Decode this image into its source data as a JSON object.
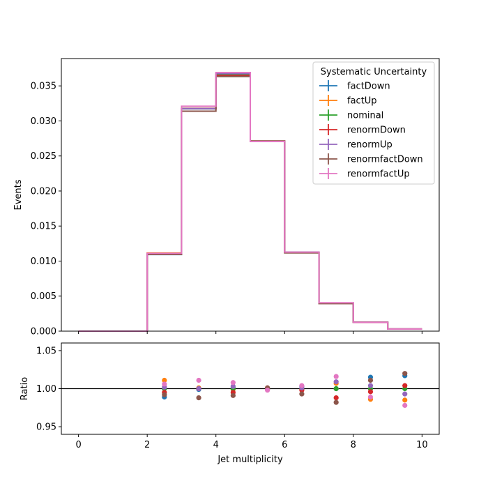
{
  "chart_data": [
    {
      "type": "line",
      "style": "step-histogram",
      "xlabel": "",
      "ylabel": "Events",
      "xlim": [
        -0.5,
        10.5
      ],
      "ylim": [
        0,
        0.0389
      ],
      "bin_edges": [
        0,
        1,
        2,
        3,
        4,
        5,
        6,
        7,
        8,
        9,
        10
      ],
      "yticks": [
        "0.000",
        "0.005",
        "0.010",
        "0.015",
        "0.020",
        "0.025",
        "0.030",
        "0.035"
      ],
      "xticks": [
        0,
        2,
        4,
        6,
        8,
        10
      ],
      "legend_title": "Systematic Uncertainty",
      "legend_position": "upper-right",
      "series": [
        {
          "name": "factDown",
          "color": "#1f77b4",
          "values": [
            0,
            0,
            0.01093,
            0.03172,
            0.0367,
            0.0271,
            0.01128,
            0.004,
            0.00129,
            0.00031
          ]
        },
        {
          "name": "factUp",
          "color": "#ff7f0e",
          "values": [
            0,
            0,
            0.01116,
            0.0318,
            0.0366,
            0.0271,
            0.01124,
            0.00403,
            0.00125,
            0.0003
          ]
        },
        {
          "name": "nominal",
          "color": "#2ca02c",
          "values": [
            0,
            0,
            0.01104,
            0.03177,
            0.03665,
            0.0271,
            0.01125,
            0.004,
            0.00127,
            0.0003
          ]
        },
        {
          "name": "renormDown",
          "color": "#d62728",
          "values": [
            0,
            0,
            0.01099,
            0.03176,
            0.03648,
            0.02712,
            0.01123,
            0.00395,
            0.00126,
            0.00031
          ]
        },
        {
          "name": "renormUp",
          "color": "#9467bd",
          "values": [
            0,
            0,
            0.01106,
            0.03178,
            0.03675,
            0.02708,
            0.01126,
            0.00403,
            0.00128,
            0.0003
          ]
        },
        {
          "name": "renormfactDown",
          "color": "#8c564b",
          "values": [
            0,
            0,
            0.01095,
            0.03139,
            0.03634,
            0.02713,
            0.01117,
            0.00393,
            0.00128,
            0.00031
          ]
        },
        {
          "name": "renormfactUp",
          "color": "#e377c2",
          "values": [
            0,
            0,
            0.01111,
            0.0321,
            0.03691,
            0.02706,
            0.01128,
            0.00406,
            0.00126,
            0.0003
          ]
        }
      ]
    },
    {
      "type": "scatter",
      "xlabel": "Jet multiplicity",
      "ylabel": "Ratio",
      "xlim": [
        -0.5,
        10.5
      ],
      "ylim": [
        0.94,
        1.06
      ],
      "yticks": [
        "0.95",
        "1.00",
        "1.05"
      ],
      "xticks": [
        0,
        2,
        4,
        6,
        8,
        10
      ],
      "reference_line": 1.0,
      "x": [
        2.5,
        3.5,
        4.5,
        5.5,
        6.5,
        7.5,
        8.5,
        9.5
      ],
      "series": [
        {
          "name": "factDown",
          "color": "#1f77b4",
          "values": [
            0.989,
            0.999,
            1.001,
            1.0,
            1.003,
            1.0,
            1.015,
            1.017
          ]
        },
        {
          "name": "factUp",
          "color": "#ff7f0e",
          "values": [
            1.011,
            1.001,
            0.999,
            1.0,
            0.999,
            1.007,
            0.986,
            0.985
          ]
        },
        {
          "name": "nominal",
          "color": "#2ca02c",
          "values": [
            1.0,
            1.0,
            1.0,
            1.0,
            1.0,
            1.0,
            1.0,
            1.0
          ]
        },
        {
          "name": "renormDown",
          "color": "#d62728",
          "values": [
            0.995,
            1.0,
            0.995,
            1.001,
            0.998,
            0.988,
            0.996,
            1.004
          ]
        },
        {
          "name": "renormUp",
          "color": "#9467bd",
          "values": [
            1.002,
            1.0,
            1.003,
            0.999,
            1.001,
            1.009,
            1.004,
            0.993
          ]
        },
        {
          "name": "renormfactDown",
          "color": "#8c564b",
          "values": [
            0.992,
            0.988,
            0.991,
            1.001,
            0.993,
            0.982,
            1.011,
            1.02
          ]
        },
        {
          "name": "renormfactUp",
          "color": "#e377c2",
          "values": [
            1.006,
            1.011,
            1.008,
            0.998,
            1.004,
            1.016,
            0.989,
            0.978
          ]
        }
      ]
    }
  ]
}
